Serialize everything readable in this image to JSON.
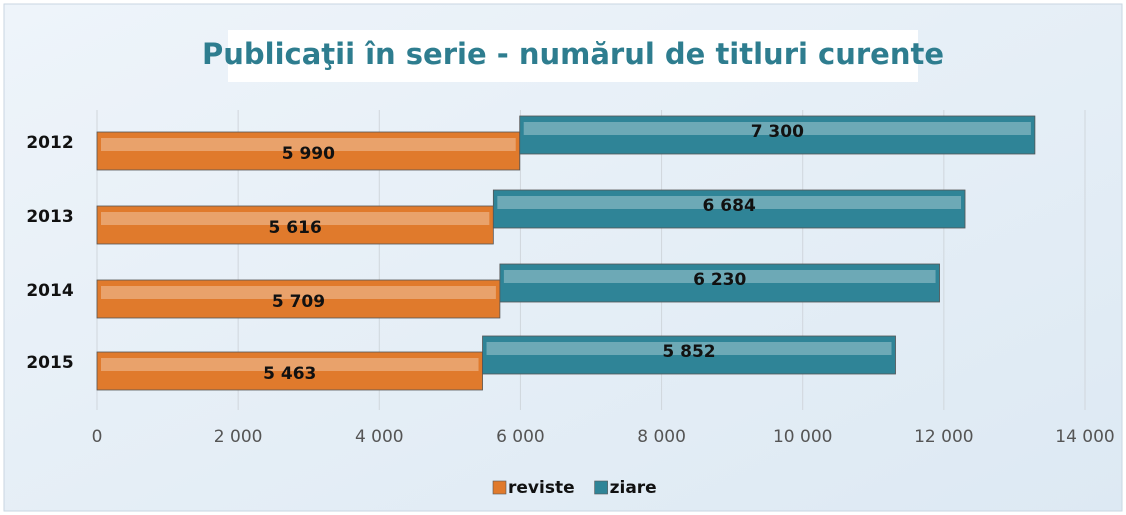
{
  "chart_data": {
    "type": "stacked-hbar",
    "title": "Publicaţii în serie - numărul de titluri curente",
    "categories": [
      "2012",
      "2013",
      "2014",
      "2015"
    ],
    "series": [
      {
        "name": "reviste",
        "color": "#e07a2c",
        "values": [
          5990,
          5616,
          5709,
          5463
        ],
        "value_labels": [
          "5 990",
          "5 616",
          "5 709",
          "5 463"
        ]
      },
      {
        "name": "ziare",
        "color": "#2f8497",
        "values": [
          7300,
          6684,
          6230,
          5852
        ],
        "value_labels": [
          "7 300",
          "6 684",
          "6 230",
          "5 852"
        ]
      }
    ],
    "xlim": [
      0,
      14000
    ],
    "xticks": [
      0,
      {
        "value": 2000,
        "label": "2 000"
      },
      {
        "value": 4000,
        "label": "4 000"
      },
      {
        "value": 6000,
        "label": "6 000"
      },
      {
        "value": 8000,
        "label": "8 000"
      },
      {
        "value": 10000,
        "label": "10 000"
      },
      {
        "value": 12000,
        "label": "12 000"
      },
      {
        "value": 14000,
        "label": "14 000"
      }
    ],
    "grid": true,
    "legend": "bottom"
  }
}
